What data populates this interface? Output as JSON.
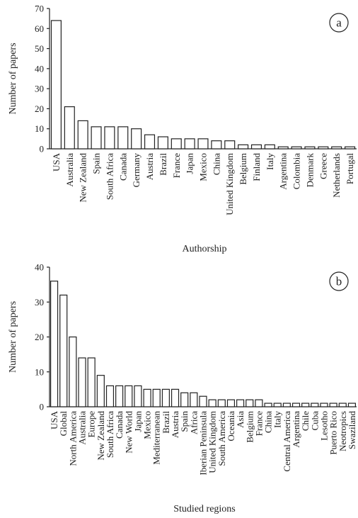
{
  "chart_data": [
    {
      "type": "bar",
      "panel_label": "a",
      "xlabel": "Authorship",
      "ylabel": "Number of papers",
      "ylim": [
        0,
        70
      ],
      "yticks": [
        0,
        10,
        20,
        30,
        40,
        50,
        60,
        70
      ],
      "categories": [
        "USA",
        "Australia",
        "New Zealand",
        "Spain",
        "South Africa",
        "Canada",
        "Germany",
        "Austria",
        "Brazil",
        "France",
        "Japan",
        "Mexico",
        "China",
        "United Kingdom",
        "Belgium",
        "Finland",
        "Italy",
        "Argentina",
        "Colombia",
        "Denmark",
        "Greece",
        "Netherlands",
        "Portugal"
      ],
      "values": [
        64,
        21,
        14,
        11,
        11,
        11,
        10,
        7,
        6,
        5,
        5,
        5,
        4,
        4,
        2,
        2,
        2,
        1,
        1,
        1,
        1,
        1,
        1
      ]
    },
    {
      "type": "bar",
      "panel_label": "b",
      "xlabel": "Studied regions",
      "ylabel": "Number of papers",
      "ylim": [
        0,
        40
      ],
      "yticks": [
        0,
        10,
        20,
        30,
        40
      ],
      "categories": [
        "USA",
        "Global",
        "North America",
        "Australia",
        "Europe",
        "New Zealand",
        "South Africa",
        "Canada",
        "New World",
        "Japan",
        "Mexico",
        "Mediterranean",
        "Brazil",
        "Austria",
        "Spain",
        "Africa",
        "Iberian Peninsula",
        "United Kingdom",
        "South America",
        "Oceania",
        "Asia",
        "Belgium",
        "France",
        "China",
        "Italy",
        "Central America",
        "Argentina",
        "Chile",
        "Cuba",
        "Lesotho",
        "Puerto Rico",
        "Neotropics",
        "Swaziland"
      ],
      "values": [
        36,
        32,
        20,
        14,
        14,
        9,
        6,
        6,
        6,
        6,
        5,
        5,
        5,
        5,
        4,
        4,
        3,
        2,
        2,
        2,
        2,
        2,
        2,
        1,
        1,
        1,
        1,
        1,
        1,
        1,
        1,
        1,
        1
      ]
    }
  ]
}
